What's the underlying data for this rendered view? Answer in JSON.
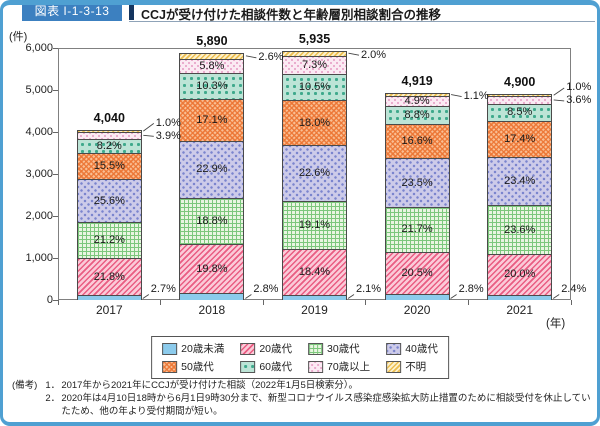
{
  "header": {
    "figure_label": "図表 I-1-3-13",
    "title": "CCJが受け付けた相談件数と年齢層別相談割合の推移"
  },
  "chart_data": {
    "type": "bar",
    "variant": "stacked-percentage",
    "title": "CCJが受け付けた相談件数と年齢層別相談割合の推移",
    "unit_label": "(件)",
    "xlabel_suffix": "(年)",
    "categories": [
      "2017",
      "2018",
      "2019",
      "2020",
      "2021"
    ],
    "totals": [
      4040,
      5890,
      5935,
      4919,
      4900
    ],
    "total_labels": [
      "4,040",
      "5,890",
      "5,935",
      "4,919",
      "4,900"
    ],
    "ylim": [
      0,
      6000
    ],
    "ytick_labels": [
      "0",
      "1,000",
      "2,000",
      "3,000",
      "4,000",
      "5,000",
      "6,000"
    ],
    "grid": false,
    "legend_position": "bottom",
    "series": [
      {
        "name": "20歳未満",
        "color": "#8CCBEC",
        "pattern": "solid",
        "values_pct": [
          2.7,
          2.8,
          2.1,
          2.8,
          2.4
        ],
        "label_outside": [
          true,
          true,
          true,
          true,
          true
        ]
      },
      {
        "name": "20歳代",
        "color": "#FBCAD8",
        "pattern": "diagonal-stripes",
        "accent": "#E95C82",
        "values_pct": [
          21.8,
          19.8,
          18.4,
          20.5,
          20.0
        ],
        "label_outside": [
          false,
          false,
          false,
          false,
          false
        ]
      },
      {
        "name": "30歳代",
        "color": "#E9F5E1",
        "pattern": "grid",
        "accent": "#7CC77C",
        "values_pct": [
          21.2,
          18.8,
          19.1,
          21.7,
          23.6
        ],
        "label_outside": [
          false,
          false,
          false,
          false,
          false
        ]
      },
      {
        "name": "40歳代",
        "color": "#CDCBE9",
        "pattern": "dots",
        "accent": "#7B85CE",
        "values_pct": [
          25.6,
          22.9,
          22.6,
          23.5,
          23.4
        ],
        "label_outside": [
          false,
          false,
          false,
          false,
          false
        ]
      },
      {
        "name": "50歳代",
        "color": "#F9BE93",
        "pattern": "checker",
        "accent": "#EC7432",
        "values_pct": [
          15.5,
          17.1,
          18.0,
          16.6,
          17.4
        ],
        "label_outside": [
          false,
          false,
          false,
          false,
          false
        ]
      },
      {
        "name": "60歳代",
        "color": "#BCE4D6",
        "pattern": "square-dots",
        "accent": "#3FA98C",
        "values_pct": [
          8.2,
          10.3,
          10.5,
          8.8,
          8.5
        ],
        "label_outside": [
          false,
          false,
          false,
          false,
          false
        ]
      },
      {
        "name": "70歳以上",
        "color": "#FBEAF3",
        "pattern": "dots",
        "accent": "#E8A6CA",
        "values_pct": [
          3.9,
          5.8,
          7.3,
          4.9,
          3.6
        ],
        "label_outside": [
          true,
          false,
          false,
          false,
          true
        ]
      },
      {
        "name": "不明",
        "color": "#FCF0CB",
        "pattern": "diagonal-stripes",
        "accent": "#ECBE4F",
        "values_pct": [
          1.0,
          2.6,
          2.0,
          1.1,
          1.0
        ],
        "label_outside": [
          true,
          true,
          true,
          true,
          true
        ]
      }
    ]
  },
  "notes": {
    "label": "(備考)",
    "items": [
      {
        "num": "1．",
        "text": "2017年から2021年にCCJが受け付けた相談（2022年1月5日検索分）。"
      },
      {
        "num": "2．",
        "text": "2020年は4月10日18時から6月1日9時30分まで、新型コロナウイルス感染症感染拡大防止措置のために相談受付を休止していたため、他の年より受付期間が短い。"
      }
    ]
  },
  "colors": {
    "frame": "#4FA0D2",
    "chip_bg": "#3C80C0",
    "chip_text": "#FFFFFF",
    "title_accent": "#15355F",
    "axis": "#808080",
    "leader_line": "#444444"
  }
}
